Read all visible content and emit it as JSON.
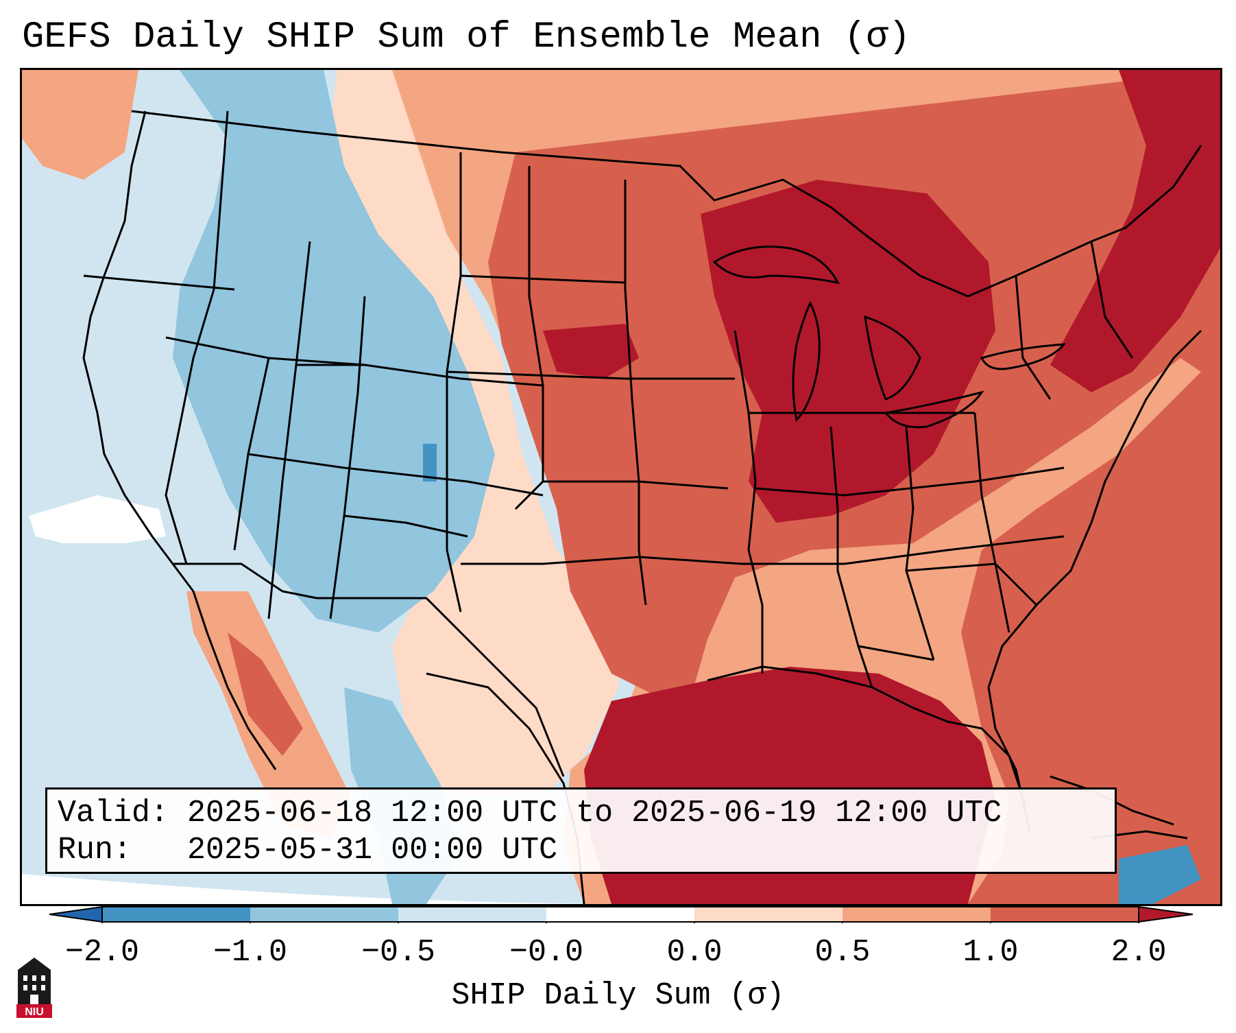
{
  "title": "GEFS Daily SHIP Sum of Ensemble Mean (σ)",
  "info": {
    "valid_label": "Valid:",
    "valid_value": "2025-06-18 12:00 UTC to 2025-06-19 12:00 UTC",
    "run_label": "Run:",
    "run_value": "2025-05-31 00:00 UTC"
  },
  "colorbar": {
    "label": "SHIP Daily Sum (σ)",
    "tick_labels": [
      "−2.0",
      "−1.0",
      "−0.5",
      "−0.0",
      "0.0",
      "0.5",
      "1.0",
      "2.0"
    ],
    "bins": [
      "#4393c3",
      "#92c5de",
      "#d1e5f0",
      "#ffffff",
      "#fddbc7",
      "#f4a582",
      "#d6604d",
      "#b2182b"
    ],
    "extend_low_color": "#2166ac",
    "extend_high_color": "#b2182b"
  },
  "map": {
    "region": "Contiguous United States, southern Canada, northern Mexico, Gulf of Mexico",
    "dominant_low_region": "Rocky Mountains / Intermountain West",
    "dominant_high_region": "Great Lakes, Ohio Valley, Northeast, Gulf of Mexico"
  },
  "logo": {
    "text": "NIU",
    "name": "Northern Illinois University"
  }
}
